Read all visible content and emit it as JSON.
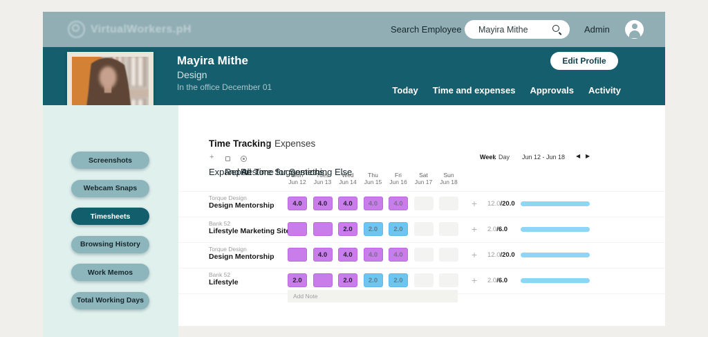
{
  "topbar": {
    "logo_text": "VirtualWorkers.pH",
    "search_label": "Search Employee",
    "search_value": "Mayira Mithe",
    "admin_label": "Admin"
  },
  "profile": {
    "name": "Mayira Mithe",
    "role": "Design",
    "status": "In the office December 01",
    "edit_button_label": "Edit Profile",
    "nav_tabs": [
      "Today",
      "Time and expenses",
      "Approvals",
      "Activity"
    ]
  },
  "sidebar": {
    "items": [
      {
        "label": "Screenshots",
        "active": false
      },
      {
        "label": "Webcam Snaps",
        "active": false
      },
      {
        "label": "Timesheets",
        "active": true
      },
      {
        "label": "Browsing History",
        "active": false
      },
      {
        "label": "Work Memos",
        "active": false
      },
      {
        "label": "Total Working Days",
        "active": false
      }
    ]
  },
  "timesheet": {
    "tab_primary": "Time Tracking",
    "tab_divider": "|",
    "tab_secondary": "Expenses",
    "toolbar": [
      {
        "icon": "expand-icon",
        "label": "Expand All"
      },
      {
        "icon": "report-icon",
        "label": "Report Time for Something Else"
      },
      {
        "icon": "restore-icon",
        "label": "Restore Suggestions"
      }
    ],
    "view_week": "Week",
    "view_divider": "|",
    "view_day": "Day",
    "date_range": "Jun 12 - Jun 18",
    "prev_icon": "◀",
    "next_icon": "▶",
    "add_icon": "+",
    "columns": [
      {
        "day": "Mon",
        "date": "Jun 12"
      },
      {
        "day": "Tues",
        "date": "Jun 13"
      },
      {
        "day": "Wed",
        "date": "Jun 14"
      },
      {
        "day": "Thu",
        "date": "Jun 15"
      },
      {
        "day": "Fri",
        "date": "Jun 16"
      },
      {
        "day": "Sat",
        "date": "Jun 17"
      },
      {
        "day": "Sun",
        "date": "Jun 18"
      }
    ],
    "rows": [
      {
        "project": "Torque Design",
        "task": "Design Mentorship",
        "cells": [
          {
            "value": "4.0",
            "style": "purple"
          },
          {
            "value": "4.0",
            "style": "purple"
          },
          {
            "value": "4.0",
            "style": "purple"
          },
          {
            "value": "4.0",
            "style": "purple-muted"
          },
          {
            "value": "4.0",
            "style": "purple-muted"
          },
          {
            "value": "",
            "style": "empty"
          },
          {
            "value": "",
            "style": "empty"
          }
        ],
        "logged": "12.0",
        "planned": "/20.0",
        "progress_pct": 100
      },
      {
        "project": "Bank 52",
        "task": "Lifestyle Marketing Site",
        "cells": [
          {
            "value": "",
            "style": "purple-empty"
          },
          {
            "value": "",
            "style": "purple-empty"
          },
          {
            "value": "2.0",
            "style": "purple"
          },
          {
            "value": "2.0",
            "style": "blue"
          },
          {
            "value": "2.0",
            "style": "blue"
          },
          {
            "value": "",
            "style": "empty"
          },
          {
            "value": "",
            "style": "empty"
          }
        ],
        "logged": "2.0",
        "planned": "/6.0",
        "progress_pct": 100
      },
      {
        "project": "Torque Design",
        "task": "Design Mentorship",
        "cells": [
          {
            "value": "",
            "style": "purple-empty"
          },
          {
            "value": "4.0",
            "style": "purple"
          },
          {
            "value": "4.0",
            "style": "purple"
          },
          {
            "value": "4.0",
            "style": "purple-muted"
          },
          {
            "value": "4.0",
            "style": "purple-muted"
          },
          {
            "value": "",
            "style": "empty"
          },
          {
            "value": "",
            "style": "empty"
          }
        ],
        "logged": "12.0",
        "planned": "/20.0",
        "progress_pct": 100
      },
      {
        "project": "Bank 52",
        "task": "Lifestyle",
        "cells": [
          {
            "value": "2.0",
            "style": "purple"
          },
          {
            "value": "",
            "style": "purple-empty"
          },
          {
            "value": "2.0",
            "style": "purple"
          },
          {
            "value": "2.0",
            "style": "blue"
          },
          {
            "value": "2.0",
            "style": "blue"
          },
          {
            "value": "",
            "style": "empty"
          },
          {
            "value": "",
            "style": "empty"
          }
        ],
        "logged": "2.0",
        "planned": "/6.0",
        "progress_pct": 100
      }
    ],
    "add_note_placeholder": "Add Note"
  },
  "colors": {
    "topbar": "#90aeb4",
    "header_teal": "#155e6d",
    "sidebar_mint": "#dff0ed",
    "sidebar_button": "#8cb5bc",
    "cell_purple": "#c97dea",
    "cell_blue": "#6ec6f0",
    "progress_blue": "#8dd6f8",
    "page_bg": "#f0efeb"
  }
}
